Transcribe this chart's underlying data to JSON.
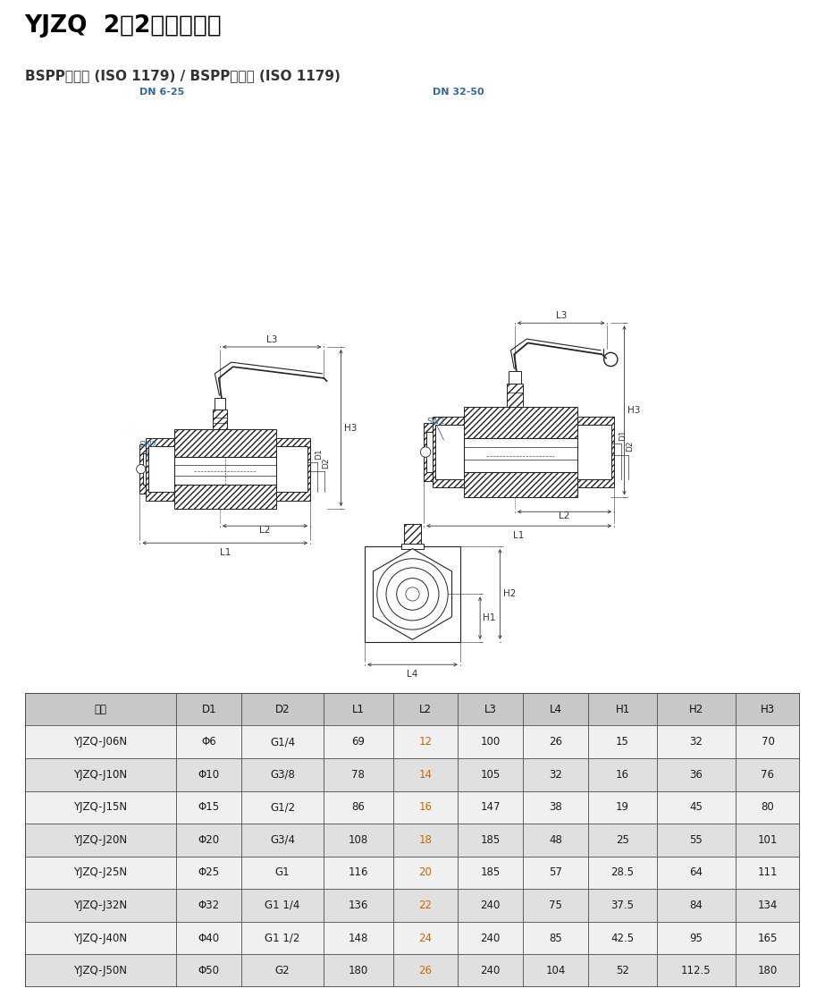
{
  "title_bold": "YJZQ  2位2通液压球阀",
  "subtitle": "BSPP内螺纹 (ISO 1179) / BSPP内螺纹 (ISO 1179)",
  "label_dn1": "DN 6-25",
  "label_dn2": "DN 32-50",
  "table_header": [
    "型号",
    "D1",
    "D2",
    "L1",
    "L2",
    "L3",
    "L4",
    "H1",
    "H2",
    "H3"
  ],
  "table_data": [
    [
      "YJZQ-J06N",
      "Φ6",
      "G1/4",
      "69",
      "12",
      "100",
      "26",
      "15",
      "32",
      "70"
    ],
    [
      "YJZQ-J10N",
      "Φ10",
      "G3/8",
      "78",
      "14",
      "105",
      "32",
      "16",
      "36",
      "76"
    ],
    [
      "YJZQ-J15N",
      "Φ15",
      "G1/2",
      "86",
      "16",
      "147",
      "38",
      "19",
      "45",
      "80"
    ],
    [
      "YJZQ-J20N",
      "Φ20",
      "G3/4",
      "108",
      "18",
      "185",
      "48",
      "25",
      "55",
      "101"
    ],
    [
      "YJZQ-J25N",
      "Φ25",
      "G1",
      "116",
      "20",
      "185",
      "57",
      "28.5",
      "64",
      "111"
    ],
    [
      "YJZQ-J32N",
      "Φ32",
      "G1 1/4",
      "136",
      "22",
      "240",
      "75",
      "37.5",
      "84",
      "134"
    ],
    [
      "YJZQ-J40N",
      "Φ40",
      "G1 1/2",
      "148",
      "24",
      "240",
      "85",
      "42.5",
      "95",
      "165"
    ],
    [
      "YJZQ-J50N",
      "Φ50",
      "G2",
      "180",
      "26",
      "240",
      "104",
      "52",
      "112.5",
      "180"
    ]
  ],
  "header_bg": "#c8c8c8",
  "row_bg_odd": "#f0f0f0",
  "row_bg_even": "#e0e0e0",
  "text_color_normal": "#1a1a1a",
  "text_color_orange": "#cc6600",
  "border_color": "#444444",
  "title_color": "#000000",
  "subtitle_color": "#333333",
  "dn_label_color": "#336699",
  "dim_color": "#333333",
  "hatch_color": "#444444",
  "line_color": "#222222"
}
